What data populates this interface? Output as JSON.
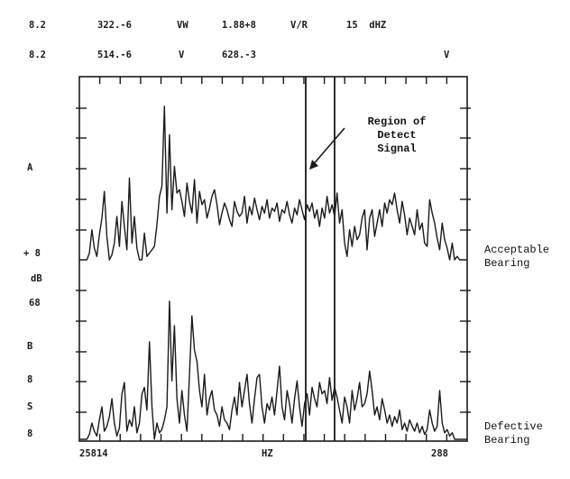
{
  "header": {
    "row1": [
      "8.2",
      "322.-6",
      "VW",
      "1.88+8",
      "V/R",
      "15  dHZ"
    ],
    "row2": [
      "8.2",
      "514.-6",
      "V",
      "628.-3",
      "V"
    ]
  },
  "side_labels": [
    "A",
    "+ 8",
    "dB",
    "68",
    "B",
    "8",
    "S",
    "8"
  ],
  "annotation": {
    "line1": "Region of",
    "line2": "Detect",
    "line3": "Signal"
  },
  "trace_labels": {
    "acceptable": [
      "Acceptable",
      "Bearing"
    ],
    "defective": [
      "Defective",
      "Bearing"
    ]
  },
  "x_axis": {
    "left": "25814",
    "center": "HZ",
    "right": "288"
  },
  "colors": {
    "ink": "#1a1a1a",
    "background": "#ffffff"
  },
  "chart_data": {
    "type": "line",
    "title": "",
    "xlabel": "HZ",
    "ylabel": "dB",
    "grid": false,
    "legend": "right",
    "x_ticks_count": 18,
    "series": [
      {
        "name": "Acceptable Bearing",
        "values": [
          0.0,
          0.0,
          0.0,
          0.0,
          0.04,
          0.18,
          0.07,
          0.02,
          0.15,
          0.25,
          0.41,
          0.14,
          0.0,
          0.03,
          0.1,
          0.26,
          0.08,
          0.35,
          0.2,
          0.06,
          0.49,
          0.1,
          0.26,
          0.07,
          0.0,
          0.0,
          0.16,
          0.02,
          0.04,
          0.06,
          0.08,
          0.21,
          0.38,
          0.44,
          0.92,
          0.28,
          0.75,
          0.3,
          0.56,
          0.4,
          0.42,
          0.35,
          0.26,
          0.46,
          0.35,
          0.28,
          0.48,
          0.22,
          0.41,
          0.33,
          0.36,
          0.25,
          0.31,
          0.38,
          0.42,
          0.33,
          0.21,
          0.28,
          0.34,
          0.3,
          0.24,
          0.2,
          0.35,
          0.29,
          0.26,
          0.28,
          0.38,
          0.22,
          0.32,
          0.27,
          0.37,
          0.3,
          0.24,
          0.32,
          0.28,
          0.36,
          0.25,
          0.31,
          0.29,
          0.34,
          0.23,
          0.3,
          0.28,
          0.35,
          0.27,
          0.22,
          0.31,
          0.27,
          0.36,
          0.3,
          0.24,
          0.33,
          0.29,
          0.34,
          0.25,
          0.3,
          0.2,
          0.31,
          0.25,
          0.38,
          0.28,
          0.33,
          0.26,
          0.4,
          0.22,
          0.3,
          0.1,
          0.02,
          0.18,
          0.08,
          0.2,
          0.12,
          0.15,
          0.25,
          0.3,
          0.06,
          0.25,
          0.3,
          0.14,
          0.22,
          0.3,
          0.2,
          0.34,
          0.28,
          0.36,
          0.33,
          0.4,
          0.3,
          0.22,
          0.35,
          0.27,
          0.15,
          0.25,
          0.2,
          0.15,
          0.3,
          0.18,
          0.22,
          0.1,
          0.08,
          0.36,
          0.28,
          0.22,
          0.13,
          0.06,
          0.22,
          0.12,
          0.07,
          0.0,
          0.1,
          0.0,
          0.02,
          0.0,
          0.0,
          0.0,
          0.0
        ]
      },
      {
        "name": "Defective Bearing",
        "values": [
          0.0,
          0.0,
          0.0,
          0.0,
          0.03,
          0.1,
          0.05,
          0.02,
          0.12,
          0.2,
          0.05,
          0.08,
          0.14,
          0.25,
          0.1,
          0.02,
          0.07,
          0.28,
          0.35,
          0.05,
          0.12,
          0.08,
          0.2,
          0.04,
          0.1,
          0.28,
          0.32,
          0.18,
          0.6,
          0.2,
          0.0,
          0.1,
          0.04,
          0.06,
          0.12,
          0.2,
          0.85,
          0.36,
          0.7,
          0.25,
          0.1,
          0.3,
          0.15,
          0.05,
          0.4,
          0.76,
          0.55,
          0.48,
          0.3,
          0.2,
          0.4,
          0.15,
          0.25,
          0.3,
          0.18,
          0.15,
          0.08,
          0.2,
          0.12,
          0.1,
          0.06,
          0.18,
          0.26,
          0.15,
          0.35,
          0.2,
          0.3,
          0.4,
          0.22,
          0.1,
          0.25,
          0.38,
          0.4,
          0.2,
          0.1,
          0.22,
          0.18,
          0.26,
          0.15,
          0.3,
          0.45,
          0.2,
          0.12,
          0.3,
          0.22,
          0.1,
          0.25,
          0.36,
          0.2,
          0.08,
          0.22,
          0.28,
          0.15,
          0.32,
          0.25,
          0.2,
          0.35,
          0.28,
          0.3,
          0.22,
          0.38,
          0.24,
          0.32,
          0.26,
          0.18,
          0.1,
          0.26,
          0.2,
          0.1,
          0.3,
          0.18,
          0.25,
          0.35,
          0.2,
          0.22,
          0.28,
          0.42,
          0.3,
          0.15,
          0.2,
          0.12,
          0.25,
          0.18,
          0.1,
          0.15,
          0.08,
          0.14,
          0.1,
          0.18,
          0.06,
          0.1,
          0.05,
          0.12,
          0.08,
          0.05,
          0.1,
          0.04,
          0.08,
          0.03,
          0.06,
          0.18,
          0.1,
          0.05,
          0.08,
          0.3,
          0.1,
          0.04,
          0.06,
          0.02,
          0.04,
          0.0,
          0.0,
          0.0,
          0.0,
          0.0,
          0.0
        ]
      }
    ]
  }
}
